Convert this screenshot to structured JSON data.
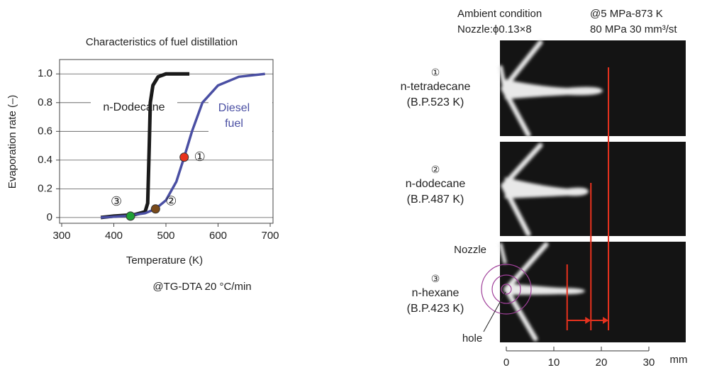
{
  "chart_data": {
    "type": "line",
    "title": "Characteristics of fuel distillation",
    "x_label": "Temperature (K)",
    "y_label": "Evaporation rate (–)",
    "note": "@TG-DTA 20 °C/min",
    "xlim": [
      300,
      700
    ],
    "xticks": [
      300,
      400,
      500,
      600,
      700
    ],
    "ylim": [
      -0.04,
      1.1
    ],
    "yticks": [
      0,
      0.2,
      0.4,
      0.6,
      0.8,
      {
        "value": 1,
        "label": "1.0"
      }
    ],
    "grid": true,
    "series": [
      {
        "name": "n-Dodecane",
        "color": "#1a1a1a",
        "x": [
          375,
          400,
          440,
          460,
          465,
          468,
          470,
          475,
          485,
          500,
          545
        ],
        "values": [
          0,
          0.01,
          0.02,
          0.04,
          0.1,
          0.5,
          0.8,
          0.92,
          0.98,
          1.0,
          1.0
        ]
      },
      {
        "name": "Diesel fuel",
        "color": "#4a4fa3",
        "x": [
          375,
          420,
          460,
          480,
          500,
          520,
          535,
          550,
          570,
          600,
          640,
          690
        ],
        "values": [
          0,
          0.01,
          0.03,
          0.06,
          0.12,
          0.25,
          0.42,
          0.6,
          0.8,
          0.92,
          0.98,
          1.0
        ]
      }
    ],
    "points": [
      {
        "label": "①",
        "x": 535,
        "y": 0.42,
        "color": "#e8321e"
      },
      {
        "label": "②",
        "x": 480,
        "y": 0.06,
        "color": "#7a4a1a"
      },
      {
        "label": "③",
        "x": 432,
        "y": 0.01,
        "color": "#1fa035"
      }
    ]
  },
  "spray_figure": {
    "header": [
      "Ambient condition",
      "@5 MPa-873 K",
      "Nozzle:ϕ0.13×8",
      "80 MPa 30 mm³/st"
    ],
    "fuels": [
      {
        "number": "①",
        "name": "n-tetradecane",
        "bp": "(B.P.523 K)",
        "color": "#e8321e",
        "tip_mm": 21.5
      },
      {
        "number": "②",
        "name": "n-dodecane",
        "bp": "(B.P.487 K)",
        "color": "#7a4a1a",
        "tip_mm": 17.8
      },
      {
        "number": "③",
        "name": "n-hexane",
        "bp": "(B.P.423 K)",
        "color": "#1fa035",
        "tip_mm": 12.8
      }
    ],
    "nozzle_label": "Nozzle",
    "hole_label": "hole",
    "xlim": [
      0,
      30
    ],
    "xticks": [
      0,
      10,
      20,
      30
    ],
    "unit": "mm"
  }
}
